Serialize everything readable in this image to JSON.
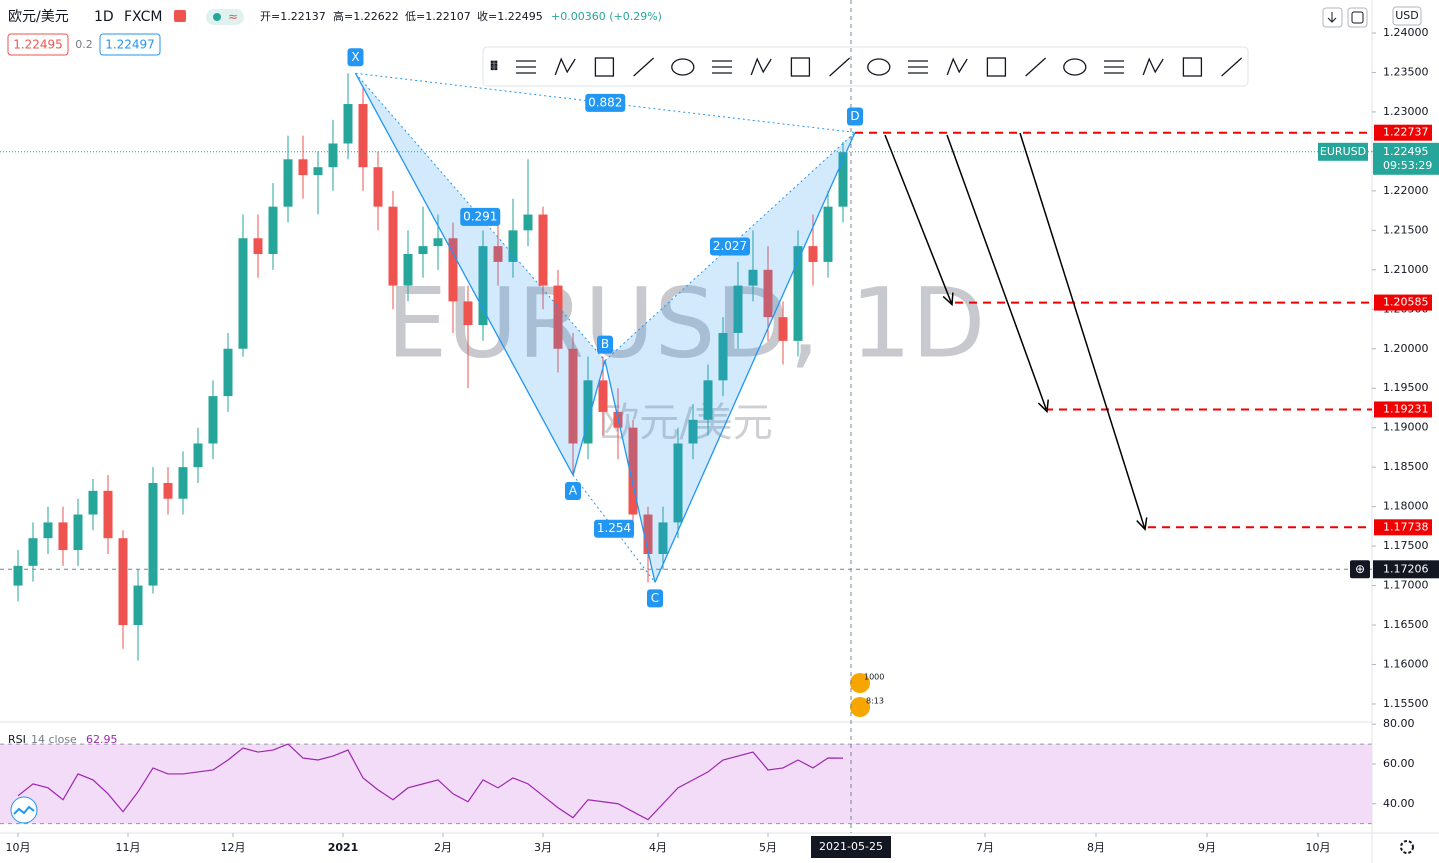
{
  "header": {
    "symbol": "欧元/美元",
    "interval": "1D",
    "source": "FXCM",
    "ohlc": [
      "开=1.22137",
      "高=1.22622",
      "低=1.22107",
      "收=1.22495"
    ],
    "change": "+0.00360 (+0.29%)",
    "bid": "1.22495",
    "spread": "0.2",
    "ask": "1.22497",
    "currency": "USD",
    "events": [
      "1000",
      "8:13"
    ]
  },
  "chart_data": [
    {
      "type": "candlestick",
      "watermark": "EURUSD, 1D",
      "watermark_sub": "欧元/美元",
      "x": [
        0,
        3,
        6,
        9,
        12,
        15,
        18,
        21,
        24,
        27,
        30,
        33,
        36,
        39,
        42,
        45,
        48,
        51,
        54,
        57,
        60,
        63,
        66,
        69,
        72,
        75,
        78,
        81,
        84,
        87,
        90,
        93,
        96,
        99,
        102,
        105,
        108,
        111,
        114,
        117,
        120,
        123,
        126,
        129,
        132,
        135,
        138,
        141,
        144,
        147,
        150,
        153,
        156,
        159,
        162,
        165
      ],
      "open": [
        1.17,
        1.1725,
        1.176,
        1.178,
        1.1745,
        1.179,
        1.182,
        1.176,
        1.165,
        1.17,
        1.183,
        1.181,
        1.185,
        1.188,
        1.194,
        1.2,
        1.214,
        1.212,
        1.218,
        1.224,
        1.222,
        1.223,
        1.226,
        1.231,
        1.223,
        1.218,
        1.208,
        1.212,
        1.213,
        1.214,
        1.206,
        1.203,
        1.213,
        1.211,
        1.215,
        1.217,
        1.208,
        1.2,
        1.188,
        1.196,
        1.192,
        1.19,
        1.179,
        1.174,
        1.178,
        1.188,
        1.191,
        1.196,
        1.202,
        1.208,
        1.21,
        1.204,
        1.201,
        1.213,
        1.211,
        1.218
      ],
      "high": [
        1.1745,
        1.178,
        1.18,
        1.18,
        1.181,
        1.1835,
        1.184,
        1.177,
        1.172,
        1.185,
        1.185,
        1.187,
        1.19,
        1.196,
        1.202,
        1.217,
        1.217,
        1.221,
        1.227,
        1.227,
        1.225,
        1.229,
        1.2349,
        1.233,
        1.225,
        1.22,
        1.215,
        1.218,
        1.217,
        1.216,
        1.208,
        1.215,
        1.216,
        1.219,
        1.224,
        1.218,
        1.21,
        1.202,
        1.199,
        1.199,
        1.195,
        1.191,
        1.18,
        1.18,
        1.19,
        1.193,
        1.198,
        1.204,
        1.211,
        1.215,
        1.213,
        1.206,
        1.215,
        1.217,
        1.22,
        1.2262
      ],
      "low": [
        1.168,
        1.1705,
        1.174,
        1.1725,
        1.1725,
        1.177,
        1.174,
        1.162,
        1.1605,
        1.169,
        1.179,
        1.179,
        1.183,
        1.186,
        1.192,
        1.199,
        1.209,
        1.21,
        1.216,
        1.219,
        1.217,
        1.22,
        1.224,
        1.22,
        1.215,
        1.205,
        1.206,
        1.209,
        1.21,
        1.202,
        1.195,
        1.201,
        1.208,
        1.209,
        1.213,
        1.205,
        1.197,
        1.184,
        1.186,
        1.189,
        1.186,
        1.176,
        1.1704,
        1.172,
        1.176,
        1.186,
        1.189,
        1.194,
        1.2,
        1.206,
        1.201,
        1.198,
        1.199,
        1.208,
        1.209,
        1.216
      ],
      "close": [
        1.1725,
        1.176,
        1.178,
        1.1745,
        1.179,
        1.182,
        1.176,
        1.165,
        1.17,
        1.183,
        1.181,
        1.185,
        1.188,
        1.194,
        1.2,
        1.214,
        1.212,
        1.218,
        1.224,
        1.222,
        1.223,
        1.226,
        1.231,
        1.223,
        1.218,
        1.208,
        1.212,
        1.213,
        1.214,
        1.206,
        1.203,
        1.213,
        1.211,
        1.215,
        1.217,
        1.208,
        1.2,
        1.188,
        1.196,
        1.192,
        1.19,
        1.179,
        1.174,
        1.178,
        1.188,
        1.191,
        1.196,
        1.202,
        1.208,
        1.21,
        1.204,
        1.201,
        1.213,
        1.211,
        1.218,
        1.2249
      ],
      "up_color": "#26a69a",
      "down_color": "#ef5350",
      "xlim": [
        -3.6,
        270.8
      ],
      "ylim": [
        1.15297,
        1.24418
      ],
      "xticks": [
        {
          "value": 0,
          "label": "10月"
        },
        {
          "value": 22,
          "label": "11月"
        },
        {
          "value": 43,
          "label": "12月"
        },
        {
          "value": 65,
          "label": "2021"
        },
        {
          "value": 85,
          "label": "2月"
        },
        {
          "value": 105,
          "label": "3月"
        },
        {
          "value": 128,
          "label": "4月"
        },
        {
          "value": 150,
          "label": "5月"
        },
        {
          "value": 193.4,
          "label": "7月"
        },
        {
          "value": 215.6,
          "label": "8月"
        },
        {
          "value": 237.8,
          "label": "9月"
        },
        {
          "value": 260,
          "label": "10月"
        }
      ],
      "yticks": [
        {
          "value": 1.155,
          "label": "1.15500"
        },
        {
          "value": 1.16,
          "label": "1.16000"
        },
        {
          "value": 1.165,
          "label": "1.16500"
        },
        {
          "value": 1.17,
          "label": "1.17000"
        },
        {
          "value": 1.175,
          "label": "1.17500"
        },
        {
          "value": 1.18,
          "label": "1.18000"
        },
        {
          "value": 1.185,
          "label": "1.18500"
        },
        {
          "value": 1.19,
          "label": "1.19000"
        },
        {
          "value": 1.195,
          "label": "1.19500"
        },
        {
          "value": 1.2,
          "label": "1.20000"
        },
        {
          "value": 1.205,
          "label": "1.20500"
        },
        {
          "value": 1.21,
          "label": "1.21000"
        },
        {
          "value": 1.215,
          "label": "1.21500"
        },
        {
          "value": 1.22,
          "label": "1.22000"
        },
        {
          "value": 1.225,
          "label": "1.22500"
        },
        {
          "value": 1.23,
          "label": "1.23000"
        },
        {
          "value": 1.235,
          "label": "1.23500"
        },
        {
          "value": 1.24,
          "label": "1.24000"
        }
      ],
      "grid": false,
      "last_price": 1.22495,
      "last_symbol": "EURUSD",
      "countdown": "09:53:29",
      "crosshair": {
        "x": 166.6,
        "x_label": "2021-05-25",
        "price": 1.17206
      },
      "targets": [
        1.22737,
        1.20585,
        1.19231,
        1.17738
      ],
      "target_color": "#f00000",
      "pattern": {
        "color": "#2196f3",
        "points": [
          {
            "label": "X",
            "x": 67.5,
            "price": 1.2349
          },
          {
            "label": "A",
            "x": 111,
            "price": 1.184
          },
          {
            "label": "B",
            "x": 117.4,
            "price": 1.1985
          },
          {
            "label": "C",
            "x": 127.4,
            "price": 1.1704
          },
          {
            "label": "D",
            "x": 167.4,
            "price": 1.2274
          }
        ],
        "ratios": [
          0.882,
          0.291,
          2.027,
          1.254
        ]
      }
    },
    {
      "type": "line",
      "title": "RSI",
      "subtitle": "14 close",
      "last": 62.95,
      "color": "#9c27b0",
      "band": [
        30,
        70
      ],
      "band_color": "#f3dcf7",
      "x": [
        0,
        3,
        6,
        9,
        12,
        15,
        18,
        21,
        24,
        27,
        30,
        33,
        36,
        39,
        42,
        45,
        48,
        51,
        54,
        57,
        60,
        63,
        66,
        69,
        72,
        75,
        78,
        81,
        84,
        87,
        90,
        93,
        96,
        99,
        102,
        105,
        108,
        111,
        114,
        117,
        120,
        123,
        126,
        129,
        132,
        135,
        138,
        141,
        144,
        147,
        150,
        153,
        156,
        159,
        162,
        165
      ],
      "values": [
        44,
        50,
        48,
        42,
        55,
        52,
        45,
        36,
        46,
        58,
        55,
        55,
        56,
        57,
        62,
        68,
        66,
        67,
        70,
        63,
        62,
        64,
        67,
        53,
        47,
        42,
        48,
        50,
        52,
        45,
        41,
        52,
        48,
        53,
        50,
        44,
        38,
        33,
        42,
        41,
        40,
        36,
        32,
        40,
        48,
        52,
        56,
        62,
        64,
        66,
        57,
        58,
        62,
        58,
        63,
        62.95
      ],
      "ylim": [
        25.3,
        80.6
      ],
      "yticks": [
        {
          "value": 40,
          "label": "40.00"
        },
        {
          "value": 60,
          "label": "60.00"
        },
        {
          "value": 80,
          "label": "80.00"
        }
      ]
    }
  ]
}
